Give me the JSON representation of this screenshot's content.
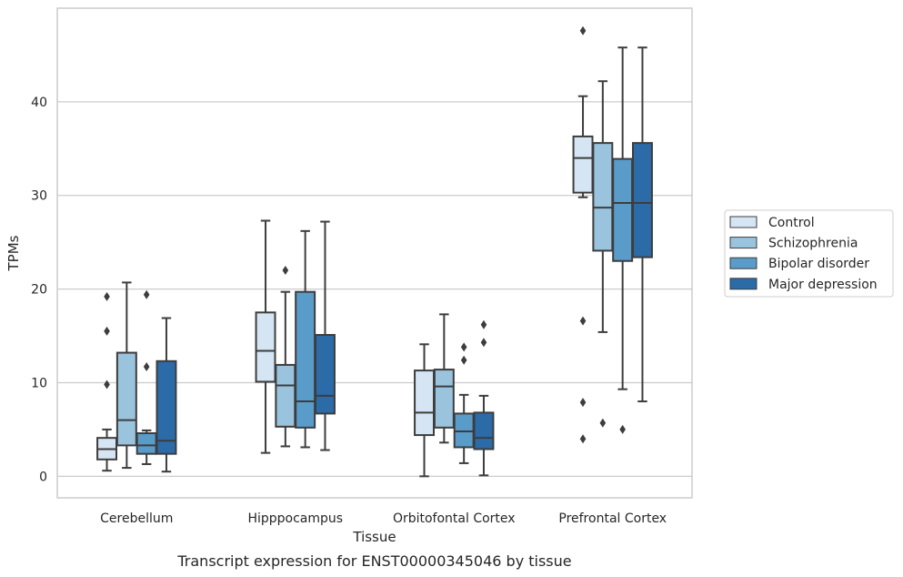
{
  "chart_data": {
    "type": "box",
    "title": "",
    "caption": "Transcript expression for ENST00000345046 by tissue",
    "xlabel": "Tissue",
    "ylabel": "TPMs",
    "ylim": [
      -2.3,
      50
    ],
    "yticks": [
      0,
      10,
      20,
      30,
      40
    ],
    "grid": "horizontal",
    "legend_position": "right",
    "categories": [
      "Cerebellum",
      "Hipppocampus",
      "Orbitofontal Cortex",
      "Prefrontal Cortex"
    ],
    "series": [
      {
        "name": "Control",
        "color": "#d6e5f3",
        "boxes": [
          {
            "whislo": 0.6,
            "q1": 1.8,
            "med": 2.9,
            "q3": 4.1,
            "whishi": 5.0,
            "fliers": [
              9.8,
              15.5,
              19.2
            ]
          },
          {
            "whislo": 2.5,
            "q1": 10.1,
            "med": 13.4,
            "q3": 17.5,
            "whishi": 27.3,
            "fliers": []
          },
          {
            "whislo": 0.0,
            "q1": 4.4,
            "med": 6.8,
            "q3": 11.3,
            "whishi": 14.1,
            "fliers": []
          },
          {
            "whislo": 29.8,
            "q1": 30.3,
            "med": 34.0,
            "q3": 36.3,
            "whishi": 40.6,
            "fliers": [
              4.0,
              7.9,
              16.6,
              47.6
            ]
          }
        ]
      },
      {
        "name": "Schizophrenia",
        "color": "#9ac3de",
        "boxes": [
          {
            "whislo": 0.9,
            "q1": 3.3,
            "med": 6.0,
            "q3": 13.2,
            "whishi": 20.7,
            "fliers": []
          },
          {
            "whislo": 3.2,
            "q1": 5.3,
            "med": 9.7,
            "q3": 11.9,
            "whishi": 19.7,
            "fliers": [
              22.0
            ]
          },
          {
            "whislo": 3.6,
            "q1": 5.2,
            "med": 9.6,
            "q3": 11.4,
            "whishi": 17.3,
            "fliers": []
          },
          {
            "whislo": 15.4,
            "q1": 24.1,
            "med": 28.7,
            "q3": 35.6,
            "whishi": 42.2,
            "fliers": [
              5.7
            ]
          }
        ]
      },
      {
        "name": "Bipolar disorder",
        "color": "#5a9cc9",
        "boxes": [
          {
            "whislo": 1.3,
            "q1": 2.4,
            "med": 3.3,
            "q3": 4.6,
            "whishi": 4.9,
            "fliers": [
              11.7,
              19.4
            ]
          },
          {
            "whislo": 3.1,
            "q1": 5.2,
            "med": 8.0,
            "q3": 19.7,
            "whishi": 26.2,
            "fliers": []
          },
          {
            "whislo": 1.4,
            "q1": 3.1,
            "med": 4.8,
            "q3": 6.7,
            "whishi": 8.7,
            "fliers": [
              12.4,
              13.8
            ]
          },
          {
            "whislo": 9.3,
            "q1": 23.0,
            "med": 29.2,
            "q3": 33.9,
            "whishi": 45.8,
            "fliers": [
              5.0
            ]
          }
        ]
      },
      {
        "name": "Major depression",
        "color": "#2b6ba8",
        "boxes": [
          {
            "whislo": 0.5,
            "q1": 2.4,
            "med": 3.8,
            "q3": 12.3,
            "whishi": 16.9,
            "fliers": []
          },
          {
            "whislo": 2.8,
            "q1": 6.7,
            "med": 8.6,
            "q3": 15.1,
            "whishi": 27.2,
            "fliers": []
          },
          {
            "whislo": 0.1,
            "q1": 2.9,
            "med": 4.1,
            "q3": 6.8,
            "whishi": 8.6,
            "fliers": [
              14.3,
              16.2
            ]
          },
          {
            "whislo": 8.0,
            "q1": 23.4,
            "med": 29.2,
            "q3": 35.6,
            "whishi": 45.8,
            "fliers": []
          }
        ]
      }
    ]
  }
}
